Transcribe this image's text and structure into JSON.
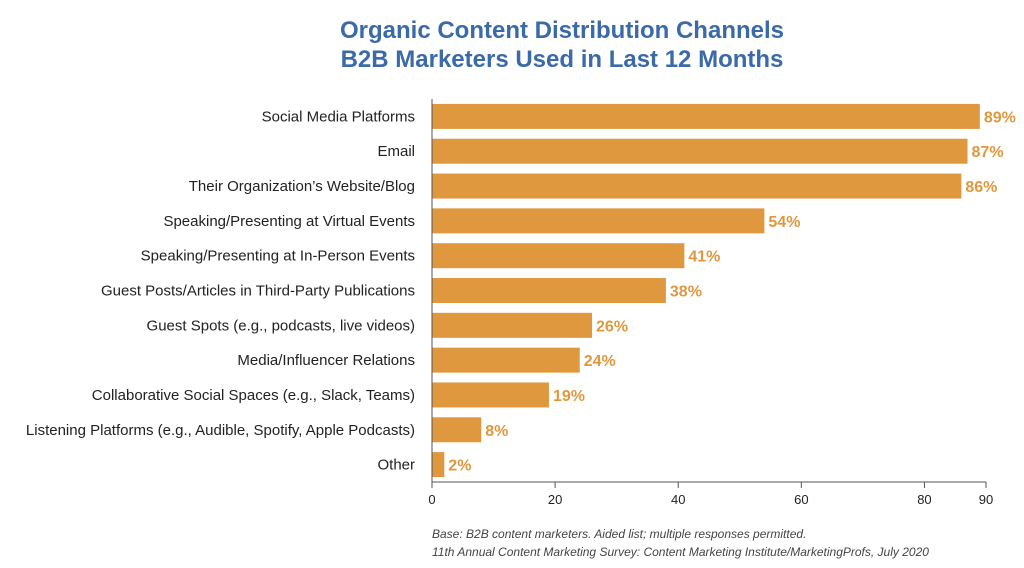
{
  "chart_data": {
    "type": "bar",
    "orientation": "horizontal",
    "title": [
      "Organic Content Distribution Channels",
      "B2B Marketers Used in Last 12 Months"
    ],
    "categories": [
      "Social Media Platforms",
      "Email",
      "Their Organization’s Website/Blog",
      "Speaking/Presenting at Virtual Events",
      "Speaking/Presenting at In-Person Events",
      "Guest Posts/Articles in Third-Party Publications",
      "Guest Spots (e.g., podcasts, live videos)",
      "Media/Influencer Relations",
      "Collaborative Social Spaces (e.g., Slack, Teams)",
      "Listening Platforms (e.g., Audible, Spotify, Apple Podcasts)",
      "Other"
    ],
    "values": [
      89,
      87,
      86,
      54,
      41,
      38,
      26,
      24,
      19,
      8,
      2
    ],
    "value_labels": [
      "89%",
      "87%",
      "86%",
      "54%",
      "41%",
      "38%",
      "26%",
      "24%",
      "19%",
      "8%",
      "2%"
    ],
    "xlim": [
      0,
      90
    ],
    "xticks": [
      0,
      20,
      40,
      60,
      80,
      90
    ],
    "xtick_labels": [
      "0",
      "20",
      "40",
      "60",
      "80",
      "90"
    ],
    "grid": false,
    "legend": "none",
    "bar_color": "#e0983f",
    "label_color": "#e0983f",
    "title_color": "#3a6aa8"
  },
  "footnotes": [
    "Base: B2B content marketers. Aided list; multiple responses permitted.",
    "11th Annual Content Marketing Survey: Content Marketing Institute/MarketingProfs, July 2020"
  ]
}
